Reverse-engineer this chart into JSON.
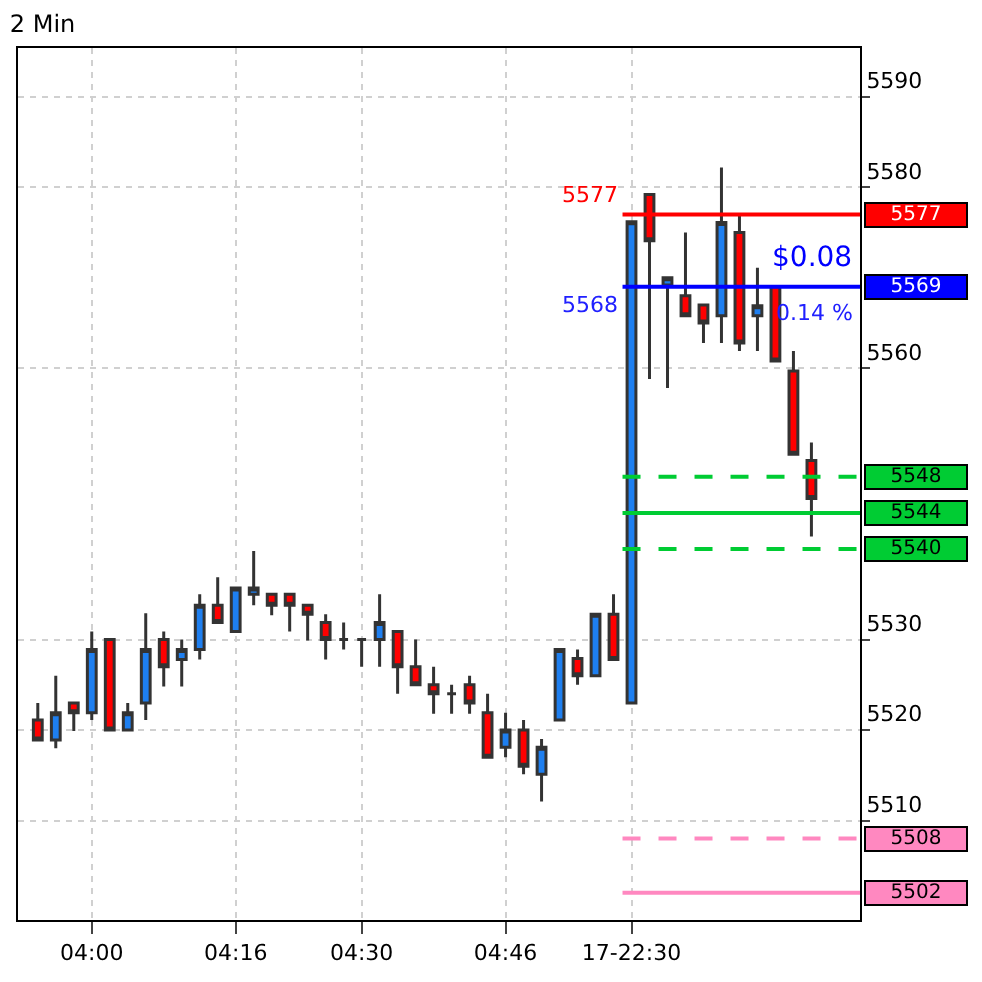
{
  "chart_data": {
    "type": "candlestick",
    "title": "2 Min",
    "categories": [
      null,
      null,
      null,
      "04:00",
      null,
      null,
      null,
      null,
      null,
      null,
      null,
      "04:16",
      null,
      null,
      null,
      null,
      null,
      null,
      "04:30",
      null,
      null,
      null,
      null,
      null,
      null,
      null,
      "04:46",
      null,
      null,
      null,
      null,
      null,
      null,
      "17-22:30",
      null,
      null,
      null,
      null,
      null,
      null,
      null,
      null,
      null,
      null
    ],
    "ohlc": [
      [
        5521.1,
        5523.0,
        5518.9,
        5518.9
      ],
      [
        5518.9,
        5526.0,
        5518.0,
        5521.9
      ],
      [
        5523.0,
        5523.0,
        5519.9,
        5521.9
      ],
      [
        5521.9,
        5530.9,
        5521.1,
        5528.9
      ],
      [
        5530.0,
        5530.0,
        5520.0,
        5520.0
      ],
      [
        5520.0,
        5523.0,
        5520.0,
        5521.9
      ],
      [
        5523.0,
        5532.9,
        5521.1,
        5528.9
      ],
      [
        5530.0,
        5530.9,
        5524.8,
        5527.0
      ],
      [
        5527.8,
        5530.0,
        5524.8,
        5528.9
      ],
      [
        5528.9,
        5535.0,
        5527.8,
        5533.8
      ],
      [
        5533.8,
        5536.9,
        5531.9,
        5531.9
      ],
      [
        5530.9,
        5535.7,
        5530.9,
        5535.7
      ],
      [
        5535.0,
        5539.8,
        5533.8,
        5535.7
      ],
      [
        5535.0,
        5535.0,
        5532.7,
        5533.8
      ],
      [
        5535.0,
        5535.0,
        5530.9,
        5533.8
      ],
      [
        5533.8,
        5533.8,
        5529.9,
        5532.8
      ],
      [
        5531.9,
        5532.8,
        5527.8,
        5530.0
      ],
      [
        5530.0,
        5531.9,
        5528.9,
        5530.0
      ],
      [
        5530.0,
        5530.0,
        5527.0,
        5530.0
      ],
      [
        5530.0,
        5535.0,
        5527.0,
        5531.9
      ],
      [
        5530.9,
        5530.9,
        5524.0,
        5527.0
      ],
      [
        5527.0,
        5530.0,
        5525.0,
        5525.0
      ],
      [
        5525.0,
        5527.0,
        5521.8,
        5524.0
      ],
      [
        5524.0,
        5525.0,
        5521.8,
        5524.0
      ],
      [
        5525.0,
        5526.0,
        5521.8,
        5523.0
      ],
      [
        5521.9,
        5524.0,
        5517.0,
        5517.0
      ],
      [
        5518.1,
        5521.9,
        5517.0,
        5520.0
      ],
      [
        5520.0,
        5521.1,
        5515.1,
        5516.0
      ],
      [
        5515.1,
        5519.0,
        5512.1,
        5518.1
      ],
      [
        5521.1,
        5528.9,
        5521.1,
        5528.9
      ],
      [
        5527.9,
        5528.9,
        5525.0,
        5526.0
      ],
      [
        5526.0,
        5532.8,
        5526.0,
        5532.8
      ],
      [
        5532.8,
        5535.0,
        5527.8,
        5527.8
      ],
      [
        5523.0,
        5576.2,
        5523.0,
        5576.2
      ],
      [
        5579.2,
        5579.2,
        5558.8,
        5574.1
      ],
      [
        5569.2,
        5570.0,
        5557.8,
        5570.0
      ],
      [
        5568.0,
        5575.0,
        5565.8,
        5565.8
      ],
      [
        5567.0,
        5567.0,
        5562.8,
        5565.0
      ],
      [
        5565.8,
        5582.2,
        5562.8,
        5576.1
      ],
      [
        5575.0,
        5577.1,
        5561.9,
        5562.8
      ],
      [
        5565.8,
        5571.1,
        5561.9,
        5566.9
      ],
      [
        5569.0,
        5569.0,
        5560.8,
        5560.8
      ],
      [
        5559.7,
        5561.9,
        5550.5,
        5550.5
      ],
      [
        5549.8,
        5551.8,
        5541.4,
        5545.6
      ]
    ],
    "colors": [
      "#ff0000",
      "#1e7ff0",
      "#ff0000",
      "#1e7ff0",
      "#ff0000",
      "#1e7ff0",
      "#1e7ff0",
      "#ff0000",
      "#1e7ff0",
      "#1e7ff0",
      "#ff0000",
      "#1e7ff0",
      "#1e7ff0",
      "#ff0000",
      "#ff0000",
      "#ff0000",
      "#ff0000",
      "#333333",
      "#333333",
      "#1e7ff0",
      "#ff0000",
      "#ff0000",
      "#ff0000",
      "#333333",
      "#ff0000",
      "#ff0000",
      "#1e7ff0",
      "#ff0000",
      "#1e7ff0",
      "#1e7ff0",
      "#ff0000",
      "#1e7ff0",
      "#ff0000",
      "#1e7ff0",
      "#ff0000",
      "#1e7ff0",
      "#ff0000",
      "#ff0000",
      "#1e7ff0",
      "#ff0000",
      "#1e7ff0",
      "#ff0000",
      "#ff0000",
      "#ff0000"
    ],
    "ylim": [
      5499,
      5595.4
    ],
    "yticks": [
      5510,
      5520,
      5530,
      5560,
      5580,
      5590
    ],
    "ref_lines": [
      {
        "axis": "y",
        "value": 5577,
        "label": "5577",
        "color": "#ff0000",
        "line_style": "solid"
      },
      {
        "axis": "y",
        "value": 5569,
        "label": "5569",
        "color": "#0000ff",
        "line_style": "solid"
      },
      {
        "axis": "y",
        "value": 5548,
        "label": "5548",
        "color": "#00cc33",
        "line_style": "dashed"
      },
      {
        "axis": "y",
        "value": 5544,
        "label": "5544",
        "color": "#00cc33",
        "line_style": "solid"
      },
      {
        "axis": "y",
        "value": 5540,
        "label": "5540",
        "color": "#00cc33",
        "line_style": "dashed"
      },
      {
        "axis": "y",
        "value": 5508,
        "label": "5508",
        "color": "#ff88c0",
        "line_style": "dashed"
      },
      {
        "axis": "y",
        "value": 5502,
        "label": "5502",
        "color": "#ff88c0",
        "line_style": "solid"
      }
    ],
    "annotations": [
      "5577",
      "5568",
      "$0.08",
      "0.14 %"
    ],
    "grid": true
  }
}
